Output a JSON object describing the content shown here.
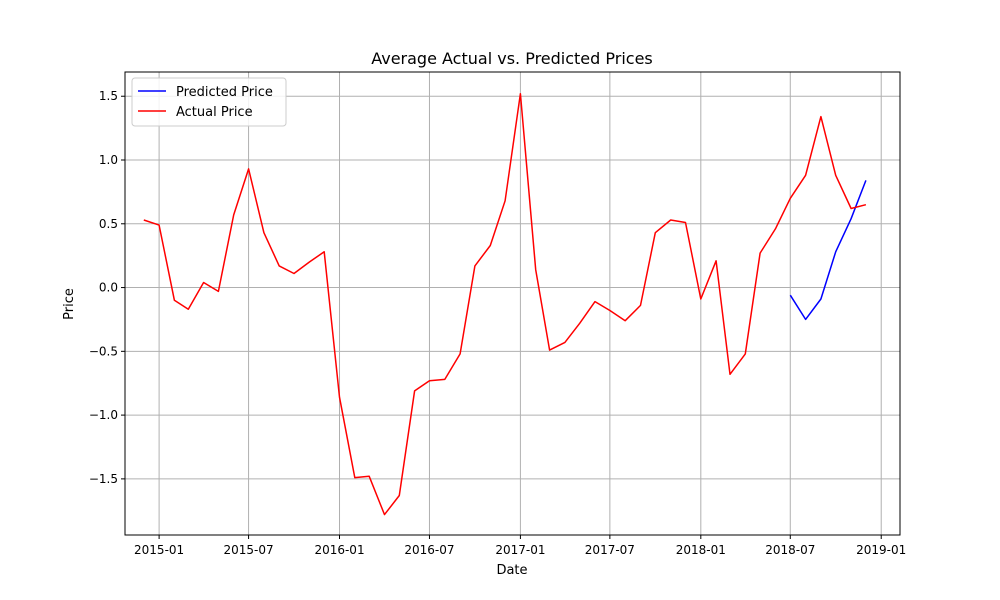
{
  "chart_data": {
    "type": "line",
    "title": "Average Actual vs. Predicted Prices",
    "xlabel": "Date",
    "ylabel": "Price",
    "x_ticks": [
      "2015-01",
      "2015-07",
      "2016-01",
      "2016-07",
      "2017-01",
      "2017-07",
      "2018-01",
      "2018-07",
      "2019-01"
    ],
    "y_ticks": [
      "−1.5",
      "−1.0",
      "−0.5",
      "0.0",
      "0.5",
      "1.0",
      "1.5"
    ],
    "y_tick_values": [
      -1.5,
      -1.0,
      -0.5,
      0.0,
      0.5,
      1.0,
      1.5
    ],
    "xlim": [
      "2014-10-24",
      "2019-02-08"
    ],
    "ylim": [
      -1.94,
      1.69
    ],
    "grid": true,
    "legend_position": "top-left",
    "series": [
      {
        "name": "Predicted Price",
        "color": "#0000ff",
        "x": [
          "2018-07-01",
          "2018-08-01",
          "2018-09-01",
          "2018-10-01",
          "2018-11-01",
          "2018-12-01"
        ],
        "values": [
          -0.06,
          -0.25,
          -0.09,
          0.28,
          0.54,
          0.84
        ]
      },
      {
        "name": "Actual Price",
        "color": "#ff0000",
        "x": [
          "2014-12-01",
          "2015-01-01",
          "2015-02-01",
          "2015-03-01",
          "2015-04-01",
          "2015-05-01",
          "2015-06-01",
          "2015-07-01",
          "2015-08-01",
          "2015-09-01",
          "2015-10-01",
          "2015-11-01",
          "2015-12-01",
          "2016-01-01",
          "2016-02-01",
          "2016-03-01",
          "2016-04-01",
          "2016-05-01",
          "2016-06-01",
          "2016-07-01",
          "2016-08-01",
          "2016-09-01",
          "2016-10-01",
          "2016-11-01",
          "2016-12-01",
          "2017-01-01",
          "2017-02-01",
          "2017-03-01",
          "2017-04-01",
          "2017-05-01",
          "2017-06-01",
          "2017-07-01",
          "2017-08-01",
          "2017-09-01",
          "2017-10-01",
          "2017-11-01",
          "2017-12-01",
          "2018-01-01",
          "2018-02-01",
          "2018-03-01",
          "2018-04-01",
          "2018-05-01",
          "2018-06-01",
          "2018-07-01",
          "2018-08-01",
          "2018-09-01",
          "2018-10-01",
          "2018-11-01",
          "2018-12-01"
        ],
        "values": [
          0.53,
          0.49,
          -0.1,
          -0.17,
          0.04,
          -0.03,
          0.57,
          0.93,
          0.43,
          0.17,
          0.11,
          0.2,
          0.28,
          -0.86,
          -1.49,
          -1.48,
          -1.78,
          -1.63,
          -0.81,
          -0.73,
          -0.72,
          -0.52,
          0.17,
          0.33,
          0.68,
          1.52,
          0.14,
          -0.49,
          -0.43,
          -0.28,
          -0.11,
          -0.18,
          -0.26,
          -0.14,
          0.43,
          0.53,
          0.51,
          -0.09,
          0.21,
          -0.68,
          -0.52,
          0.27,
          0.46,
          0.7,
          0.88,
          1.34,
          0.88,
          0.62,
          0.65
        ]
      }
    ]
  }
}
